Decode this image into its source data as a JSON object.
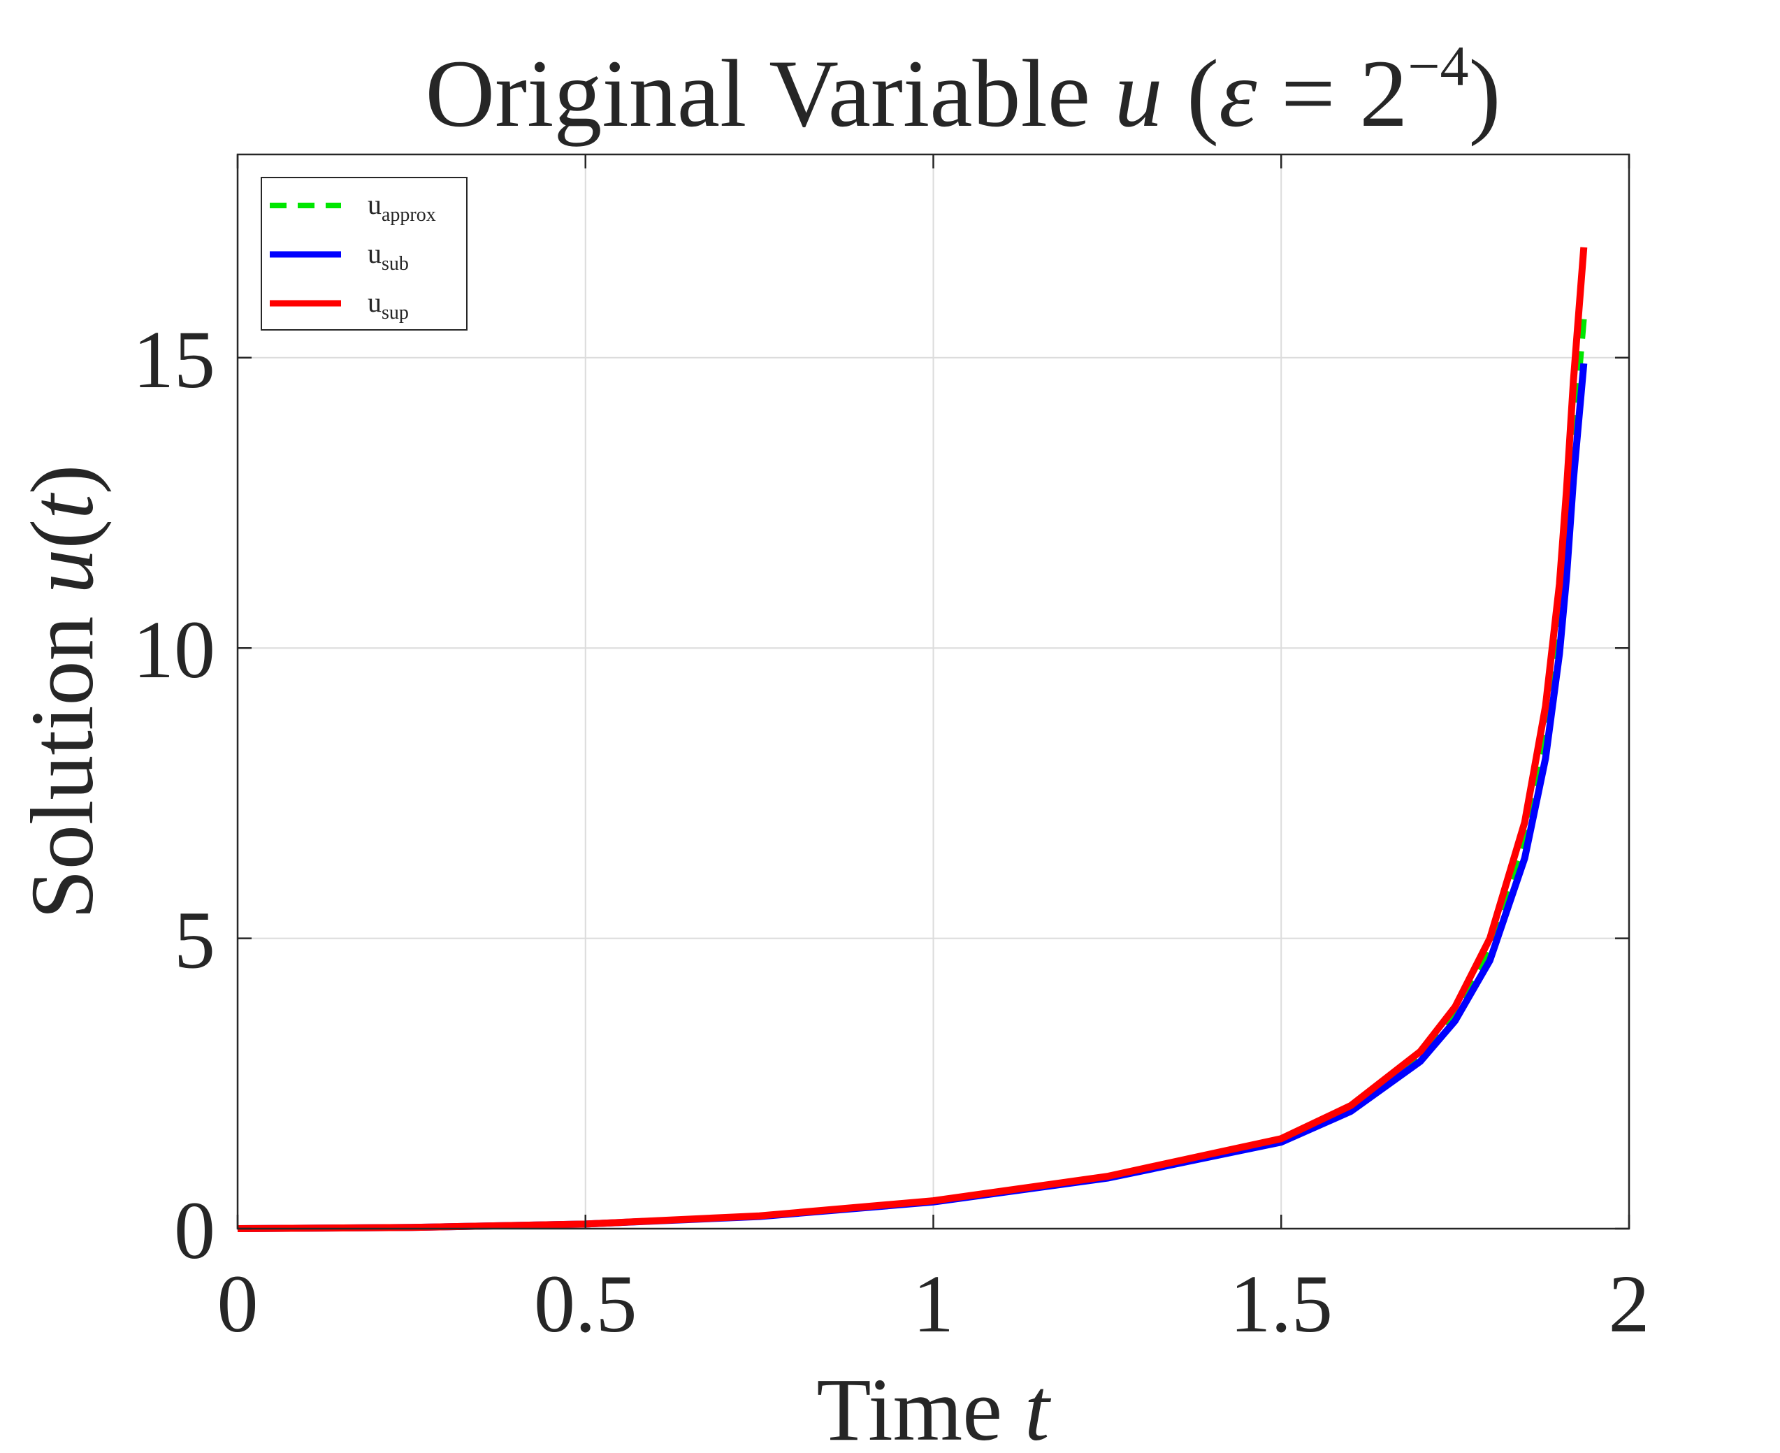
{
  "chart_data": {
    "type": "line",
    "title": {
      "prefix": "Original Variable ",
      "var": "u",
      "open": " (",
      "eps": "ε",
      "eq": " = 2",
      "sup": "−4",
      "close": ")"
    },
    "xlabel": {
      "text": "Time ",
      "var": "t"
    },
    "ylabel": {
      "text": "Solution ",
      "var": "u",
      "paren_open": "(",
      "arg": "t",
      "paren_close": ")"
    },
    "xlim": [
      0,
      2
    ],
    "ylim": [
      0,
      18.5
    ],
    "xticks": [
      0,
      0.5,
      1,
      1.5,
      2
    ],
    "xtick_labels": [
      "0",
      "0.5",
      "1",
      "1.5",
      "2"
    ],
    "yticks": [
      0,
      5,
      10,
      15
    ],
    "ytick_labels": [
      "0",
      "5",
      "10",
      "15"
    ],
    "grid": true,
    "legend_position": "top-left",
    "series": [
      {
        "name": "approx",
        "legend_base": "u",
        "legend_sub": "approx",
        "color": "#00e600",
        "style": "dashed",
        "x": [
          0,
          0.25,
          0.5,
          0.75,
          1.0,
          1.25,
          1.5,
          1.6,
          1.7,
          1.75,
          1.8,
          1.85,
          1.88,
          1.9,
          1.91,
          1.92,
          1.935
        ],
        "y": [
          0.0,
          0.02,
          0.08,
          0.22,
          0.47,
          0.89,
          1.53,
          2.08,
          2.98,
          3.72,
          4.82,
          6.68,
          8.5,
          10.4,
          11.8,
          13.6,
          15.7
        ]
      },
      {
        "name": "sub",
        "legend_base": "u",
        "legend_sub": "sub",
        "color": "#0000ff",
        "style": "solid",
        "x": [
          0,
          0.25,
          0.5,
          0.75,
          1.0,
          1.25,
          1.5,
          1.6,
          1.7,
          1.75,
          1.8,
          1.85,
          1.88,
          1.9,
          1.91,
          1.92,
          1.935
        ],
        "y": [
          0.0,
          0.02,
          0.08,
          0.21,
          0.46,
          0.87,
          1.49,
          2.02,
          2.88,
          3.58,
          4.62,
          6.38,
          8.1,
          9.9,
          11.2,
          12.9,
          14.9
        ]
      },
      {
        "name": "sup",
        "legend_base": "u",
        "legend_sub": "sup",
        "color": "#ff0000",
        "style": "solid",
        "x": [
          0,
          0.25,
          0.5,
          0.75,
          1.0,
          1.25,
          1.5,
          1.6,
          1.7,
          1.75,
          1.8,
          1.85,
          1.88,
          1.9,
          1.91,
          1.92,
          1.935
        ],
        "y": [
          0.0,
          0.02,
          0.08,
          0.22,
          0.48,
          0.9,
          1.55,
          2.12,
          3.05,
          3.82,
          5.0,
          7.0,
          9.0,
          11.1,
          12.7,
          14.6,
          16.9
        ]
      }
    ]
  }
}
